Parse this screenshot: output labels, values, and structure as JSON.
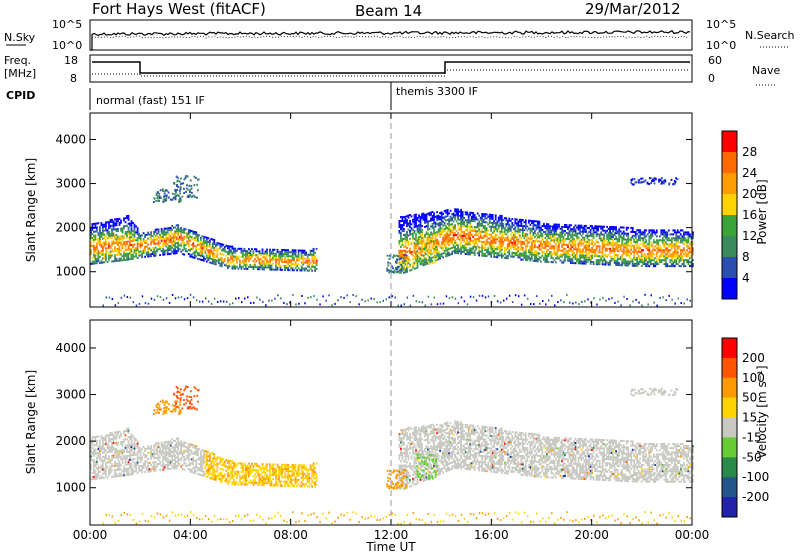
{
  "header": {
    "station": "Fort Hays West (fitACF)",
    "beam": "Beam 14",
    "date": "29/Mar/2012"
  },
  "panels": {
    "nsky_label": "N.Sky",
    "nsearch_label": "N.Search",
    "nsky_ticks": [
      "10^5",
      "10^0"
    ],
    "nsearch_ticks": [
      "10^5",
      "10^0"
    ],
    "freq_label_line1": "Freq.",
    "freq_label_line2": "[MHz]",
    "freq_ticks": [
      "18",
      "8"
    ],
    "nave_label": "Nave",
    "nave_ticks": [
      "60",
      "0"
    ],
    "cpid_label": "CPID",
    "cpid_modes": [
      "normal (fast) 151 IF",
      "themis 3300 IF"
    ]
  },
  "colors": {
    "power_scale": [
      "#0000ff",
      "#2a4fb0",
      "#3b8a5e",
      "#3aa33a",
      "#ffd400",
      "#ff9c00",
      "#ff6a00",
      "#ff0000"
    ],
    "velocity_scale": [
      "#2222aa",
      "#22558a",
      "#2a8a4a",
      "#66cc33",
      "#c8c8c0",
      "#ffd400",
      "#ff9a00",
      "#ff5500",
      "#ff0000"
    ]
  },
  "chart_data": [
    {
      "type": "heatmap",
      "name": "power",
      "ylabel": "Slant Range [km]",
      "y_ticks": [
        "1000",
        "2000",
        "3000",
        "4000"
      ],
      "ylim": [
        200,
        4600
      ],
      "x_ticks": [
        "00:00",
        "04:00",
        "08:00",
        "12:00",
        "16:00",
        "20:00",
        "00:00"
      ],
      "colorbar_label": "Power [dB]",
      "colorbar_ticks": [
        "28",
        "24",
        "20",
        "16",
        "12",
        "8",
        "4"
      ],
      "band_samples_range_km": [
        {
          "t": 0.0,
          "center": 1550,
          "top": 2100,
          "bottom": 1200
        },
        {
          "t": 1.5,
          "center": 1650,
          "top": 2300,
          "bottom": 1300
        },
        {
          "t": 2.0,
          "center": 1600,
          "top": 1900,
          "bottom": 1350
        },
        {
          "t": 3.5,
          "center": 1800,
          "top": 2100,
          "bottom": 1450
        },
        {
          "t": 5.5,
          "center": 1300,
          "top": 1600,
          "bottom": 1100
        },
        {
          "t": 8.5,
          "center": 1250,
          "top": 1500,
          "bottom": 1050
        },
        {
          "t": 12.5,
          "center": 1400,
          "top": 2300,
          "bottom": 1000
        },
        {
          "t": 14.5,
          "center": 1850,
          "top": 2450,
          "bottom": 1450
        },
        {
          "t": 18.0,
          "center": 1600,
          "top": 2150,
          "bottom": 1250
        },
        {
          "t": 22.0,
          "center": 1500,
          "top": 2000,
          "bottom": 1150
        },
        {
          "t": 24.0,
          "center": 1500,
          "top": 1950,
          "bottom": 1150
        }
      ]
    },
    {
      "type": "heatmap",
      "name": "velocity",
      "ylabel": "Slant Range [km]",
      "y_ticks": [
        "1000",
        "2000",
        "3000",
        "4000"
      ],
      "ylim": [
        200,
        4600
      ],
      "xlabel": "Time UT",
      "x_ticks": [
        "00:00",
        "04:00",
        "08:00",
        "12:00",
        "16:00",
        "20:00",
        "00:00"
      ],
      "colorbar_label": "Velocity [m s⁻¹]",
      "colorbar_ticks": [
        "200",
        "100",
        "50",
        "15",
        "-15",
        "-50",
        "-100",
        "-200"
      ]
    }
  ]
}
